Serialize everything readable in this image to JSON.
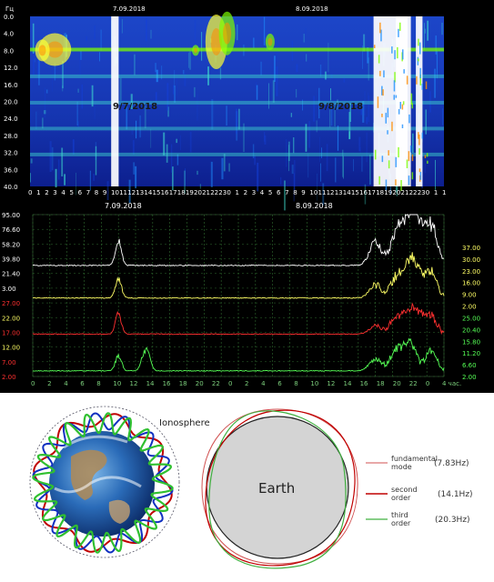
{
  "chart_data": [
    {
      "type": "heatmap",
      "title": "",
      "ylabel": "Гц",
      "y_ticks": [
        "0.0",
        "4.0",
        "8.0",
        "12.0",
        "16.0",
        "20.0",
        "24.0",
        "28.0",
        "32.0",
        "36.0",
        "40.0"
      ],
      "ylim": [
        0,
        40
      ],
      "x_ticks": [
        "0",
        "1",
        "2",
        "3",
        "4",
        "5",
        "6",
        "7",
        "8",
        "9",
        "10",
        "11",
        "12",
        "13",
        "14",
        "15",
        "16",
        "17",
        "18",
        "19",
        "20",
        "21",
        "22",
        "23",
        "0",
        "1",
        "2",
        "3",
        "4",
        "5",
        "6",
        "7",
        "8",
        "9",
        "10",
        "11",
        "12",
        "13",
        "14",
        "15",
        "16",
        "17",
        "18",
        "19",
        "20",
        "21",
        "22",
        "23",
        "0",
        "1",
        "1"
      ],
      "top_dates": [
        "7.09.2018",
        "8.09.2018"
      ],
      "bottom_dates": [
        "7.09.2018",
        "8.09.2018"
      ],
      "annotations": [
        "9/7/2018",
        "9/8/2018"
      ],
      "bands_hz": [
        7.8,
        14.1,
        20.3,
        26.4,
        32.5
      ],
      "colorscale": [
        "#0a1a9a",
        "#1440d8",
        "#1e90ff",
        "#40e0d0",
        "#7cfc00",
        "#ffff33",
        "#ff8c00",
        "#ffffff"
      ]
    },
    {
      "type": "line",
      "title": "",
      "left_ticks": [
        {
          "label": "95.00",
          "color": "#ffffff"
        },
        {
          "label": "76.60",
          "color": "#ffffff"
        },
        {
          "label": "58.20",
          "color": "#ffffff"
        },
        {
          "label": "39.80",
          "color": "#ffffff"
        },
        {
          "label": "21.40",
          "color": "#ffffff"
        },
        {
          "label": "3.00",
          "color": "#ffffff"
        },
        {
          "label": "27.00",
          "color": "#ff3030"
        },
        {
          "label": "22.00",
          "color": "#ffff66"
        },
        {
          "label": "17.00",
          "color": "#ff3030"
        },
        {
          "label": "12.00",
          "color": "#ffff66"
        },
        {
          "label": "7.00",
          "color": "#ff3030"
        },
        {
          "label": "2.00",
          "color": "#ff3030"
        }
      ],
      "right_ticks": [
        {
          "label": "37.00",
          "color": "#ffff66"
        },
        {
          "label": "30.00",
          "color": "#ffff66"
        },
        {
          "label": "23.00",
          "color": "#ffff66"
        },
        {
          "label": "16.00",
          "color": "#ffff66"
        },
        {
          "label": "9.00",
          "color": "#ffff66"
        },
        {
          "label": "2.00",
          "color": "#ffff66"
        },
        {
          "label": "25.00",
          "color": "#55ff55"
        },
        {
          "label": "20.40",
          "color": "#55ff55"
        },
        {
          "label": "15.80",
          "color": "#55ff55"
        },
        {
          "label": "11.20",
          "color": "#55ff55"
        },
        {
          "label": "6.60",
          "color": "#55ff55"
        },
        {
          "label": "2.00",
          "color": "#55ff55"
        }
      ],
      "x_ticks": [
        "0",
        "2",
        "4",
        "6",
        "8",
        "10",
        "12",
        "14",
        "16",
        "18",
        "20",
        "22",
        "0",
        "2",
        "4",
        "6",
        "8",
        "10",
        "12",
        "14",
        "16",
        "18",
        "20",
        "22",
        "0",
        "4 час."
      ],
      "series": [
        {
          "color": "#ffffff",
          "baseline": 0.15,
          "events": [
            {
              "t": 10,
              "h": 0.95
            },
            {
              "t": 40,
              "h": 0.9
            },
            {
              "t": 42.5,
              "h": 1.4
            },
            {
              "t": 44,
              "h": 1.7
            },
            {
              "t": 45,
              "h": 1.2
            },
            {
              "t": 46.5,
              "h": 1.5
            }
          ]
        },
        {
          "color": "#ffff66",
          "baseline": 0.18,
          "events": [
            {
              "t": 10,
              "h": 0.9
            },
            {
              "t": 40,
              "h": 0.6
            },
            {
              "t": 42.5,
              "h": 1.0
            },
            {
              "t": 44,
              "h": 1.3
            },
            {
              "t": 45,
              "h": 0.9
            },
            {
              "t": 46.5,
              "h": 1.1
            }
          ]
        },
        {
          "color": "#ff3030",
          "baseline": 0.2,
          "events": [
            {
              "t": 10,
              "h": 0.95
            },
            {
              "t": 40,
              "h": 0.4
            },
            {
              "t": 42.5,
              "h": 0.8
            },
            {
              "t": 44,
              "h": 0.9
            },
            {
              "t": 45,
              "h": 0.7
            },
            {
              "t": 46.5,
              "h": 0.9
            }
          ]
        },
        {
          "color": "#55ff55",
          "baseline": 0.1,
          "events": [
            {
              "t": 10,
              "h": 0.75
            },
            {
              "t": 13,
              "h": 0.8
            },
            {
              "t": 13.5,
              "h": 0.6
            },
            {
              "t": 40,
              "h": 0.6
            },
            {
              "t": 42.5,
              "h": 1.0
            },
            {
              "t": 44,
              "h": 1.4
            },
            {
              "t": 46.5,
              "h": 1.0
            }
          ]
        }
      ]
    }
  ],
  "diagram": {
    "ionosphere_label": "Ionosphere",
    "earth_label": "Earth",
    "legend": [
      {
        "name": "fundamental\nmode",
        "value": "(7.83Hz)",
        "color": "#d05050"
      },
      {
        "name": "second\norder",
        "value": "(14.1Hz)",
        "color": "#c00000"
      },
      {
        "name": "third\norder",
        "value": "(20.3Hz)",
        "color": "#40b040"
      }
    ]
  }
}
